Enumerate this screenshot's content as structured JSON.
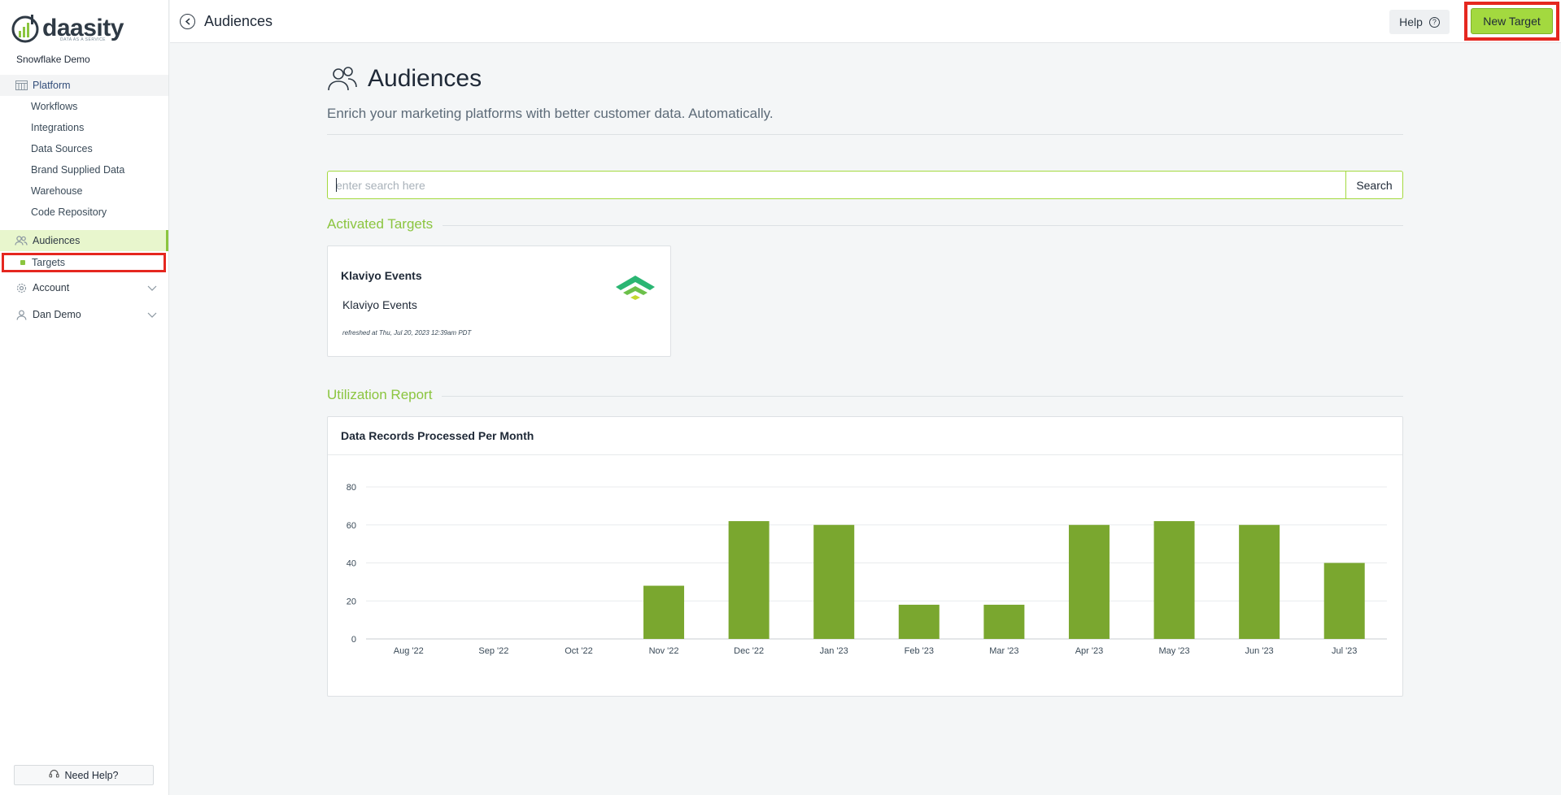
{
  "brand": {
    "name": "daasity",
    "tagline": "DATA AS A SERVICE",
    "accent": "#8bc53f"
  },
  "sidebar": {
    "org": "Snowflake Demo",
    "platform": "Platform",
    "items": [
      "Workflows",
      "Integrations",
      "Data Sources",
      "Brand Supplied Data",
      "Warehouse",
      "Code Repository"
    ],
    "audiences": "Audiences",
    "targets": "Targets",
    "account": "Account",
    "user": "Dan Demo",
    "need_help": "Need Help?"
  },
  "topbar": {
    "title": "Audiences",
    "help": "Help",
    "new_target": "New Target"
  },
  "hero": {
    "title": "Audiences",
    "subtitle": "Enrich your marketing platforms with better customer data. Automatically."
  },
  "search": {
    "placeholder": "enter search here",
    "button": "Search"
  },
  "activated": {
    "heading": "Activated Targets",
    "cards": [
      {
        "title": "Klaviyo Events",
        "name": "Klaviyo Events",
        "refreshed": "refreshed at Thu, Jul 20, 2023 12:39am PDT",
        "logo": "klaviyo-icon"
      }
    ]
  },
  "utilization": {
    "heading": "Utilization Report",
    "card_title": "Data Records Processed Per Month"
  },
  "chart_data": {
    "type": "bar",
    "title": "Data Records Processed Per Month",
    "categories": [
      "Aug '22",
      "Sep '22",
      "Oct '22",
      "Nov '22",
      "Dec '22",
      "Jan '23",
      "Feb '23",
      "Mar '23",
      "Apr '23",
      "May '23",
      "Jun '23",
      "Jul '23"
    ],
    "values": [
      0,
      0,
      0,
      28,
      62,
      60,
      18,
      18,
      60,
      62,
      60,
      40
    ],
    "ylim": [
      0,
      80
    ],
    "yticks": [
      0,
      20,
      40,
      60,
      80
    ],
    "color": "#7aa72f",
    "grid": true
  }
}
